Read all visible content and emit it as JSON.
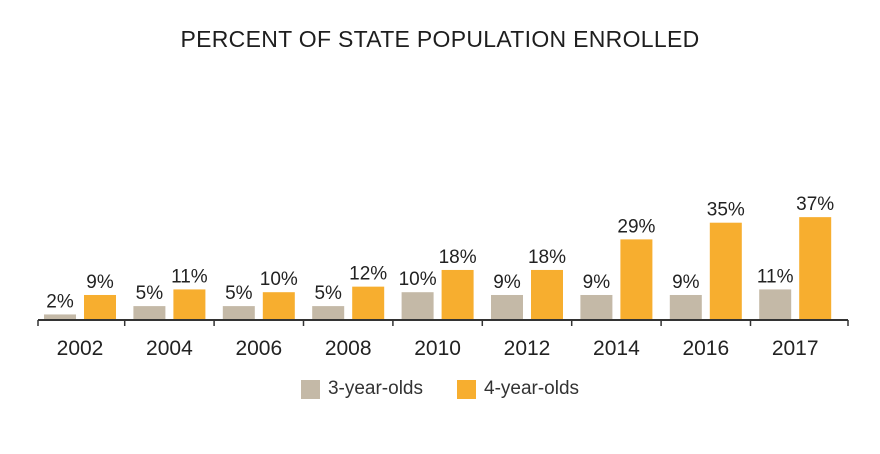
{
  "chart_data": {
    "type": "bar",
    "title": "PERCENT OF STATE POPULATION ENROLLED",
    "categories": [
      "2002",
      "2004",
      "2006",
      "2008",
      "2010",
      "2012",
      "2014",
      "2016",
      "2017"
    ],
    "series": [
      {
        "name": "3-year-olds",
        "color": "#c4b9a7",
        "values": [
          2,
          5,
          5,
          5,
          10,
          9,
          9,
          9,
          11
        ],
        "labels": [
          "2%",
          "5%",
          "5%",
          "5%",
          "10%",
          "9%",
          "9%",
          "9%",
          "11%"
        ]
      },
      {
        "name": "4-year-olds",
        "color": "#f7ae2f",
        "values": [
          9,
          11,
          10,
          12,
          18,
          18,
          29,
          35,
          37
        ],
        "labels": [
          "9%",
          "11%",
          "10%",
          "12%",
          "18%",
          "18%",
          "29%",
          "35%",
          "37%"
        ]
      }
    ],
    "ylim": [
      0,
      40
    ],
    "grid": false,
    "legend_position": "bottom"
  }
}
